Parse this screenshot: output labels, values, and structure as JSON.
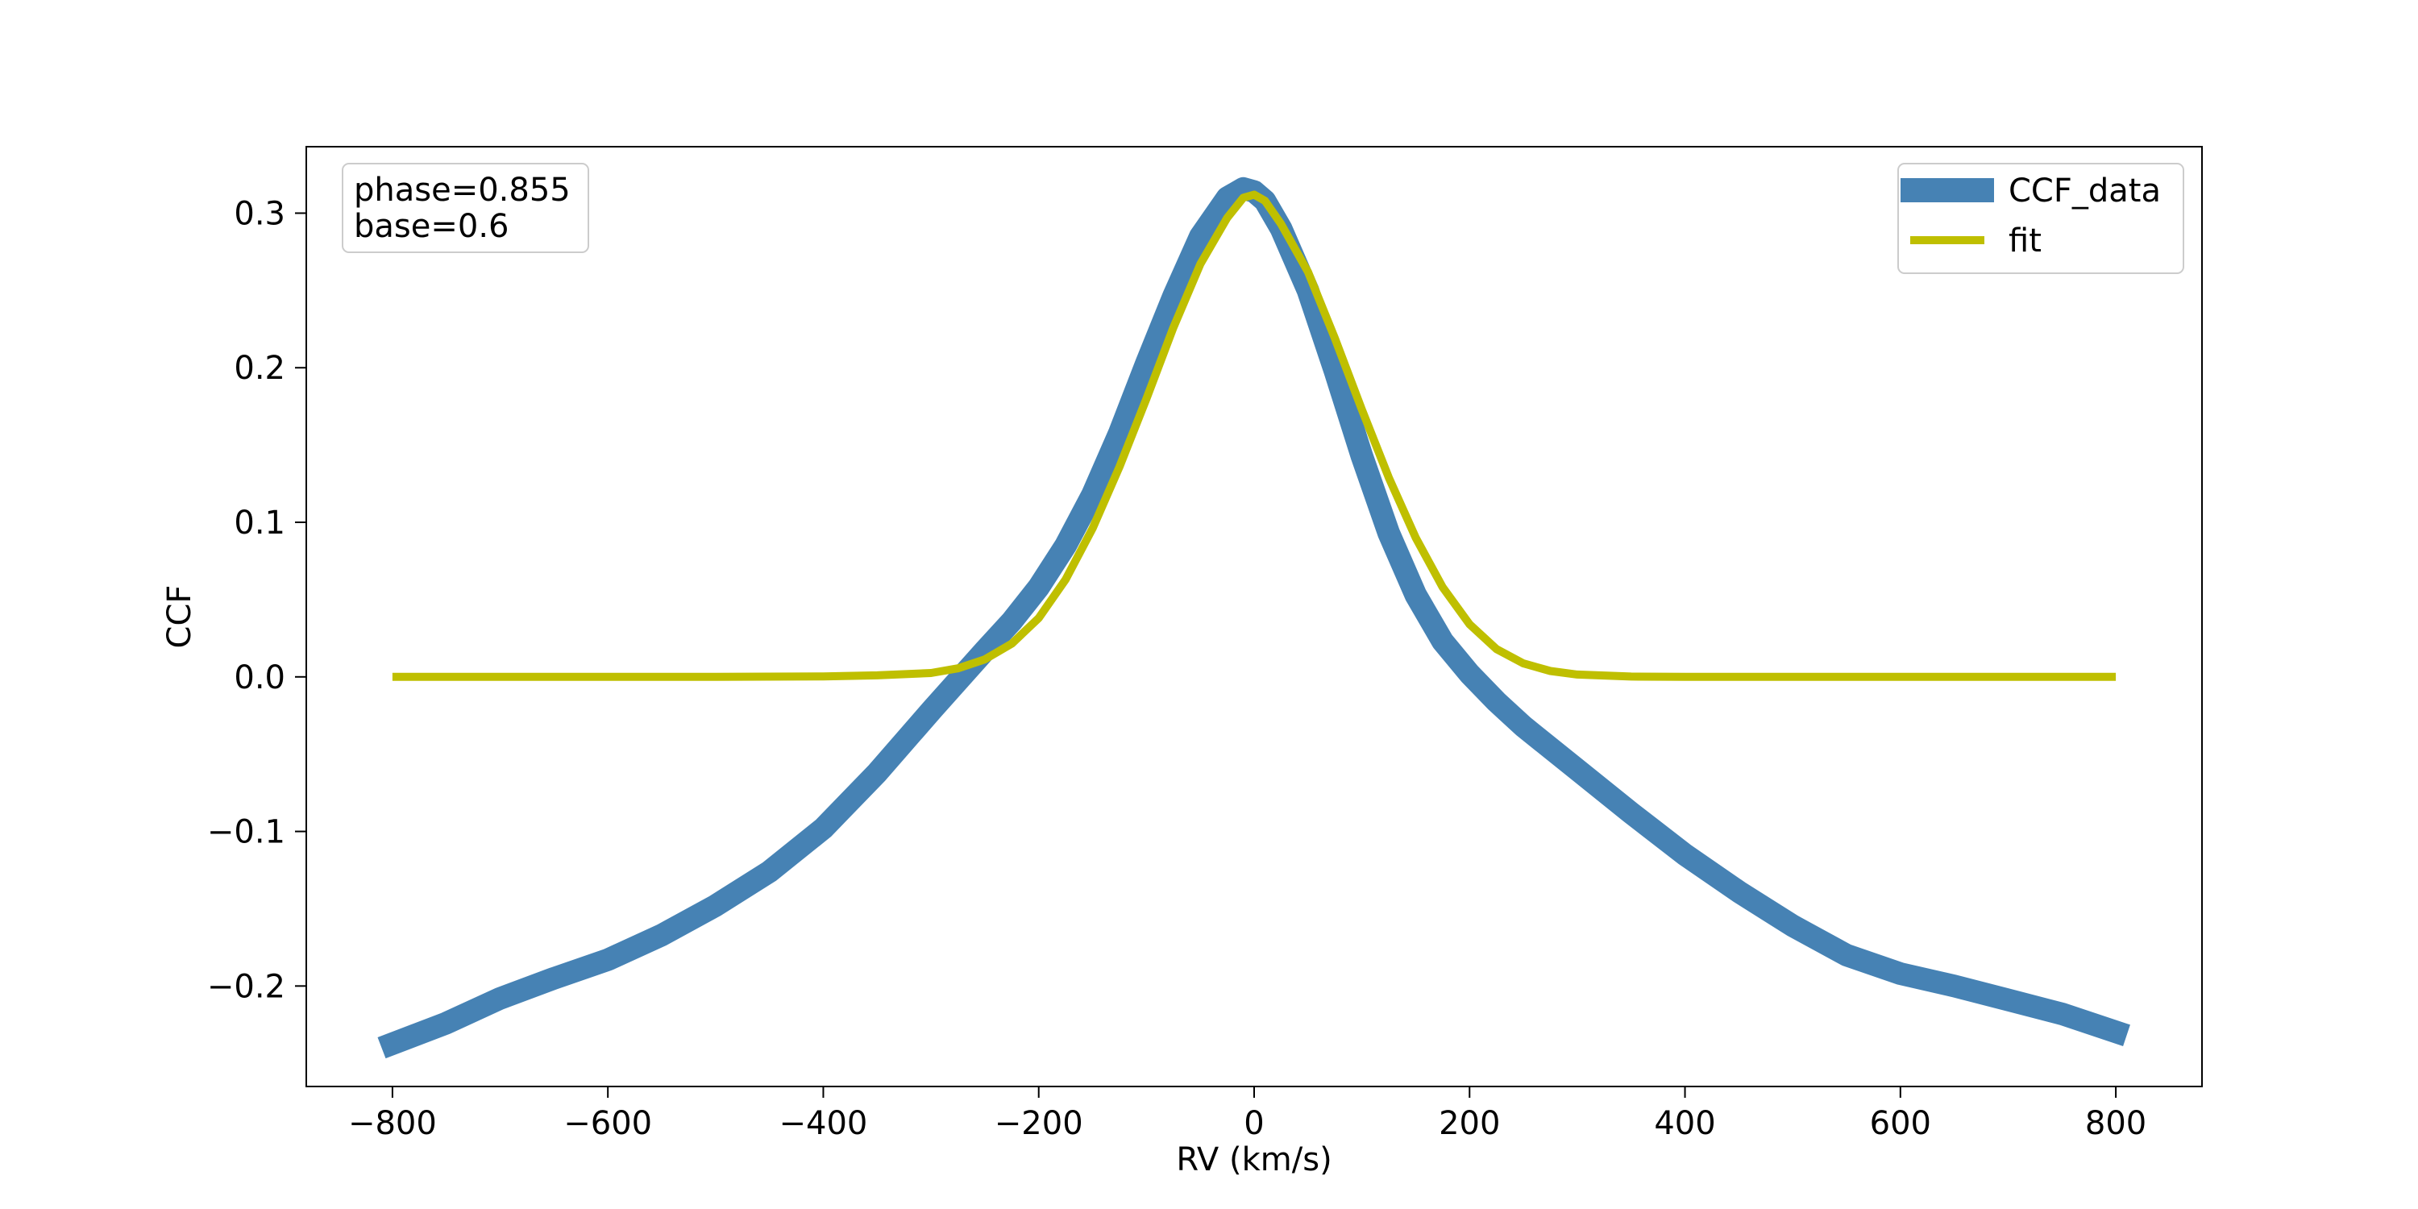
{
  "chart_data": {
    "type": "line",
    "xlabel": "RV (km/s)",
    "ylabel": "CCF",
    "xlim": [
      -880,
      880
    ],
    "ylim": [
      -0.265,
      0.343
    ],
    "x_ticks": [
      -800,
      -600,
      -400,
      -200,
      0,
      200,
      400,
      600,
      800
    ],
    "x_tick_labels": [
      "−800",
      "−600",
      "−400",
      "−200",
      "0",
      "200",
      "400",
      "600",
      "800"
    ],
    "y_ticks": [
      -0.2,
      -0.1,
      0.0,
      0.1,
      0.2,
      0.3
    ],
    "y_tick_labels": [
      "−0.2",
      "−0.1",
      "0.0",
      "0.1",
      "0.2",
      "0.3"
    ],
    "grid": false,
    "legend_position": "top-right",
    "annotation": {
      "position": "top-left",
      "lines": [
        "phase=0.855",
        "base=0.6"
      ]
    },
    "series": [
      {
        "name": "CCF_data",
        "color": "#4682b4",
        "x": [
          -810,
          -750,
          -700,
          -650,
          -600,
          -550,
          -500,
          -450,
          -400,
          -350,
          -300,
          -250,
          -225,
          -200,
          -175,
          -150,
          -125,
          -100,
          -75,
          -50,
          -25,
          -10,
          0,
          10,
          25,
          50,
          75,
          100,
          125,
          150,
          175,
          200,
          225,
          250,
          300,
          350,
          400,
          450,
          500,
          550,
          600,
          650,
          700,
          750,
          810
        ],
        "y": [
          -0.24,
          -0.224,
          -0.208,
          -0.195,
          -0.183,
          -0.167,
          -0.148,
          -0.126,
          -0.098,
          -0.062,
          -0.022,
          0.017,
          0.036,
          0.058,
          0.085,
          0.118,
          0.158,
          0.203,
          0.246,
          0.285,
          0.31,
          0.316,
          0.314,
          0.308,
          0.29,
          0.25,
          0.198,
          0.143,
          0.093,
          0.053,
          0.023,
          0.002,
          -0.016,
          -0.032,
          -0.06,
          -0.088,
          -0.115,
          -0.139,
          -0.161,
          -0.18,
          -0.192,
          -0.2,
          -0.209,
          -0.218,
          -0.232
        ]
      },
      {
        "name": "fit",
        "color": "#bfbf00",
        "x": [
          -800,
          -500,
          -400,
          -350,
          -300,
          -275,
          -250,
          -225,
          -200,
          -175,
          -150,
          -125,
          -100,
          -75,
          -50,
          -25,
          -10,
          0,
          10,
          25,
          50,
          75,
          100,
          125,
          150,
          175,
          200,
          225,
          250,
          275,
          300,
          350,
          400,
          500,
          800
        ],
        "y": [
          0.0,
          0.0,
          0.0003,
          0.001,
          0.0025,
          0.0055,
          0.0113,
          0.0215,
          0.038,
          0.063,
          0.096,
          0.136,
          0.18,
          0.226,
          0.267,
          0.297,
          0.31,
          0.312,
          0.308,
          0.293,
          0.262,
          0.219,
          0.173,
          0.129,
          0.09,
          0.058,
          0.034,
          0.018,
          0.0087,
          0.0038,
          0.0015,
          0.0002,
          0.0,
          0.0,
          0.0
        ]
      }
    ]
  }
}
